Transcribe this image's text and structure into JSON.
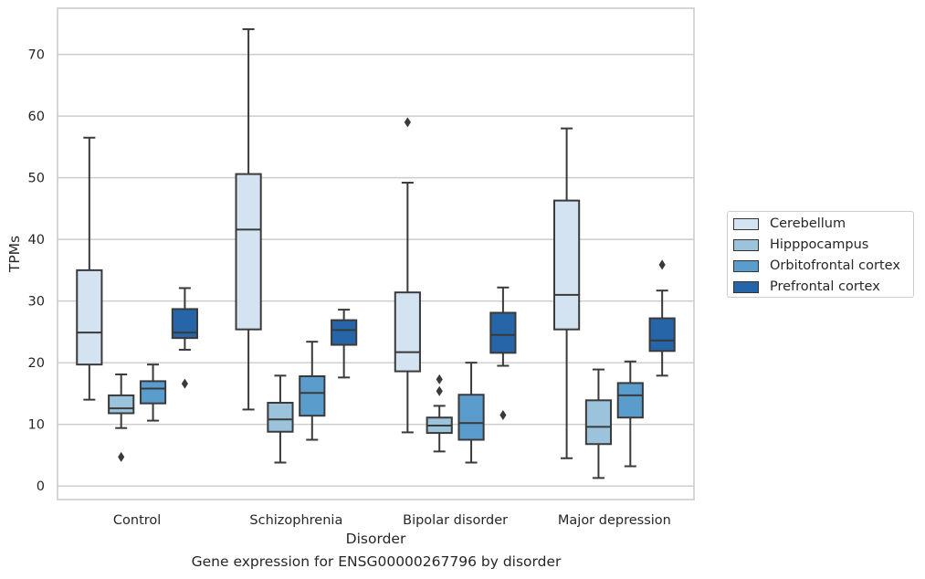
{
  "chart_data": {
    "type": "box",
    "title": "",
    "caption": "Gene expression for ENSG00000267796 by disorder",
    "xlabel": "Disorder",
    "ylabel": "TPMs",
    "categories": [
      "Control",
      "Schizophrenia",
      "Bipolar disorder",
      "Major depression"
    ],
    "yticks": [
      0,
      10,
      20,
      30,
      40,
      50,
      60,
      70
    ],
    "ylim": [
      -2.2,
      77.5
    ],
    "grid": "horizontal",
    "legend_position": "right",
    "series": [
      {
        "name": "Cerebellum",
        "color": "#d4e3f1",
        "boxes": [
          {
            "whislo": 14.0,
            "q1": 19.7,
            "med": 24.9,
            "q3": 35.0,
            "whishi": 56.5,
            "fliers": []
          },
          {
            "whislo": 12.4,
            "q1": 25.4,
            "med": 41.6,
            "q3": 50.6,
            "whishi": 74.1,
            "fliers": []
          },
          {
            "whislo": 8.7,
            "q1": 18.6,
            "med": 21.7,
            "q3": 31.4,
            "whishi": 49.2,
            "fliers": [
              59.0
            ]
          },
          {
            "whislo": 4.5,
            "q1": 25.4,
            "med": 31.0,
            "q3": 46.3,
            "whishi": 58.0,
            "fliers": []
          }
        ]
      },
      {
        "name": "Hipppocampus",
        "color": "#9bc4dc",
        "boxes": [
          {
            "whislo": 9.4,
            "q1": 11.8,
            "med": 12.6,
            "q3": 14.7,
            "whishi": 18.1,
            "fliers": [
              4.7
            ]
          },
          {
            "whislo": 3.8,
            "q1": 8.8,
            "med": 10.8,
            "q3": 13.5,
            "whishi": 17.9,
            "fliers": []
          },
          {
            "whislo": 5.6,
            "q1": 8.6,
            "med": 9.8,
            "q3": 11.1,
            "whishi": 13.0,
            "fliers": [
              15.4,
              17.3
            ]
          },
          {
            "whislo": 1.3,
            "q1": 6.8,
            "med": 9.6,
            "q3": 13.9,
            "whishi": 18.9,
            "fliers": []
          }
        ]
      },
      {
        "name": "Orbitofrontal cortex",
        "color": "#5a9ccc",
        "boxes": [
          {
            "whislo": 10.6,
            "q1": 13.4,
            "med": 15.8,
            "q3": 17.0,
            "whishi": 19.7,
            "fliers": []
          },
          {
            "whislo": 7.5,
            "q1": 11.4,
            "med": 15.1,
            "q3": 17.8,
            "whishi": 23.4,
            "fliers": []
          },
          {
            "whislo": 3.8,
            "q1": 7.5,
            "med": 10.2,
            "q3": 14.8,
            "whishi": 20.0,
            "fliers": []
          },
          {
            "whislo": 3.2,
            "q1": 11.1,
            "med": 14.7,
            "q3": 16.7,
            "whishi": 20.2,
            "fliers": []
          }
        ]
      },
      {
        "name": "Prefrontal cortex",
        "color": "#2565a8",
        "boxes": [
          {
            "whislo": 22.1,
            "q1": 24.0,
            "med": 24.9,
            "q3": 28.7,
            "whishi": 32.1,
            "fliers": [
              16.6
            ]
          },
          {
            "whislo": 17.6,
            "q1": 22.9,
            "med": 25.3,
            "q3": 26.9,
            "whishi": 28.6,
            "fliers": []
          },
          {
            "whislo": 19.5,
            "q1": 21.6,
            "med": 24.5,
            "q3": 28.1,
            "whishi": 32.2,
            "fliers": [
              11.5
            ]
          },
          {
            "whislo": 17.9,
            "q1": 21.9,
            "med": 23.6,
            "q3": 27.2,
            "whishi": 31.7,
            "fliers": [
              35.9
            ]
          }
        ]
      }
    ]
  }
}
